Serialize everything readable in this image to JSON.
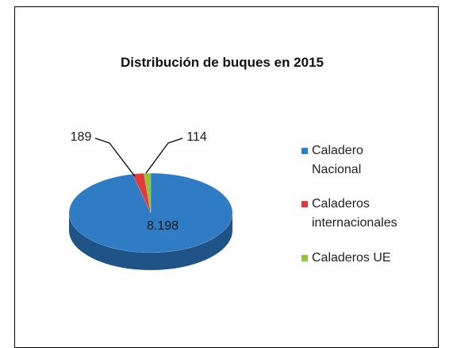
{
  "chart_data": {
    "type": "pie",
    "title": "Distribución de buques en 2015",
    "categories": [
      "Caladero Nacional",
      "Caladeros internacionales",
      "Caladeros UE"
    ],
    "values": [
      8198,
      189,
      114
    ],
    "value_labels": [
      "8.198",
      "189",
      "114"
    ],
    "colors": [
      "#2f7cc5",
      "#e23a3a",
      "#8fc43b"
    ]
  }
}
